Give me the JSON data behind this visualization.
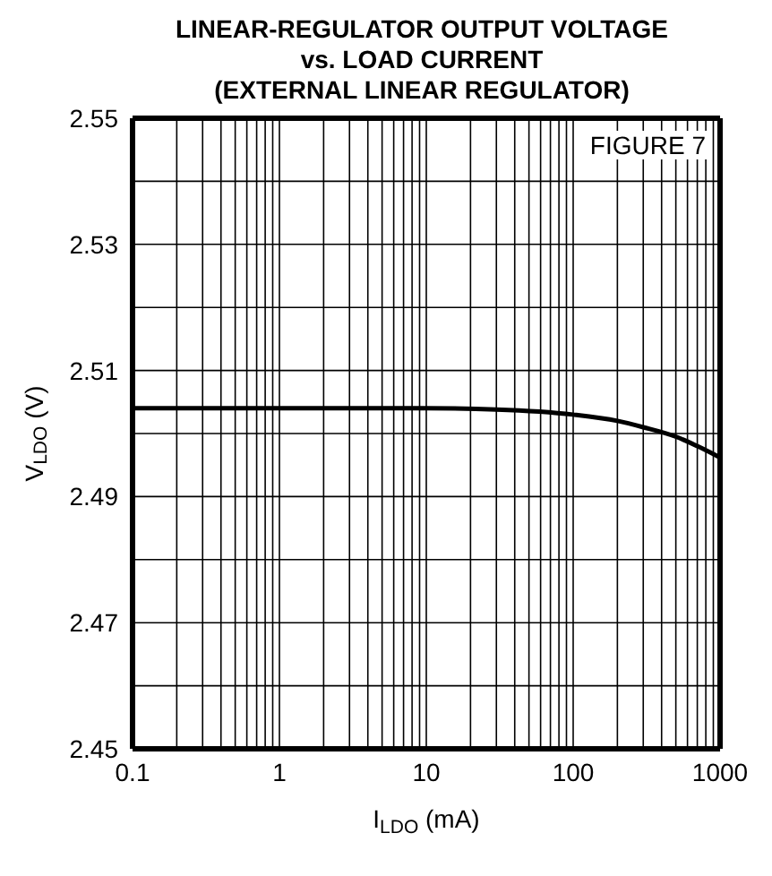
{
  "chart_data": {
    "type": "line",
    "title": "LINEAR-REGULATOR OUTPUT VOLTAGE\nvs. LOAD CURRENT\n(EXTERNAL LINEAR REGULATOR)",
    "xlabel": "I$_{LDO}$ (mA)",
    "ylabel": "V$_{LDO}$ (V)",
    "annotations": [
      "FIGURE 7"
    ],
    "x": [
      0.1,
      0.3,
      1,
      3,
      10,
      30,
      100,
      200,
      300,
      500,
      700,
      1000
    ],
    "series": [
      {
        "color": "#000000",
        "values": [
          2.504,
          2.504,
          2.504,
          2.504,
          2.504,
          2.5038,
          2.503,
          2.502,
          2.501,
          2.4995,
          2.498,
          2.4962
        ]
      }
    ],
    "log": "x",
    "xlim": [
      0.1,
      1000
    ],
    "ylim": [
      2.45,
      2.55
    ],
    "xticks": [
      0.1,
      {
        "value": 0.2,
        "label": null
      },
      {
        "value": 0.3,
        "label": null
      },
      {
        "value": 0.4,
        "label": null
      },
      {
        "value": 0.5,
        "label": null
      },
      {
        "value": 0.6,
        "label": null
      },
      {
        "value": 0.7,
        "label": null
      },
      {
        "value": 0.8,
        "label": null
      },
      {
        "value": 0.9,
        "label": null
      },
      1,
      {
        "value": 2,
        "label": null
      },
      {
        "value": 3,
        "label": null
      },
      {
        "value": 4,
        "label": null
      },
      {
        "value": 5,
        "label": null
      },
      {
        "value": 6,
        "label": null
      },
      {
        "value": 7,
        "label": null
      },
      {
        "value": 8,
        "label": null
      },
      {
        "value": 9,
        "label": null
      },
      10,
      {
        "value": 20,
        "label": null
      },
      {
        "value": 30,
        "label": null
      },
      {
        "value": 40,
        "label": null
      },
      {
        "value": 50,
        "label": null
      },
      {
        "value": 60,
        "label": null
      },
      {
        "value": 70,
        "label": null
      },
      {
        "value": 80,
        "label": null
      },
      {
        "value": 90,
        "label": null
      },
      100,
      {
        "value": 200,
        "label": null
      },
      {
        "value": 300,
        "label": null
      },
      {
        "value": 400,
        "label": null
      },
      {
        "value": 500,
        "label": null
      },
      {
        "value": 600,
        "label": null
      },
      {
        "value": 700,
        "label": null
      },
      {
        "value": 800,
        "label": null
      },
      {
        "value": 900,
        "label": null
      },
      1000
    ],
    "yticks": [
      2.45,
      {
        "value": 2.46,
        "label": null
      },
      2.47,
      {
        "value": 2.48,
        "label": null
      },
      2.49,
      {
        "value": 2.5,
        "label": null
      },
      2.51,
      {
        "value": 2.52,
        "label": null
      },
      2.53,
      {
        "value": 2.54,
        "label": null
      },
      2.55
    ],
    "grid": true,
    "marker": "none",
    "line_style": "solid",
    "legend": false
  }
}
